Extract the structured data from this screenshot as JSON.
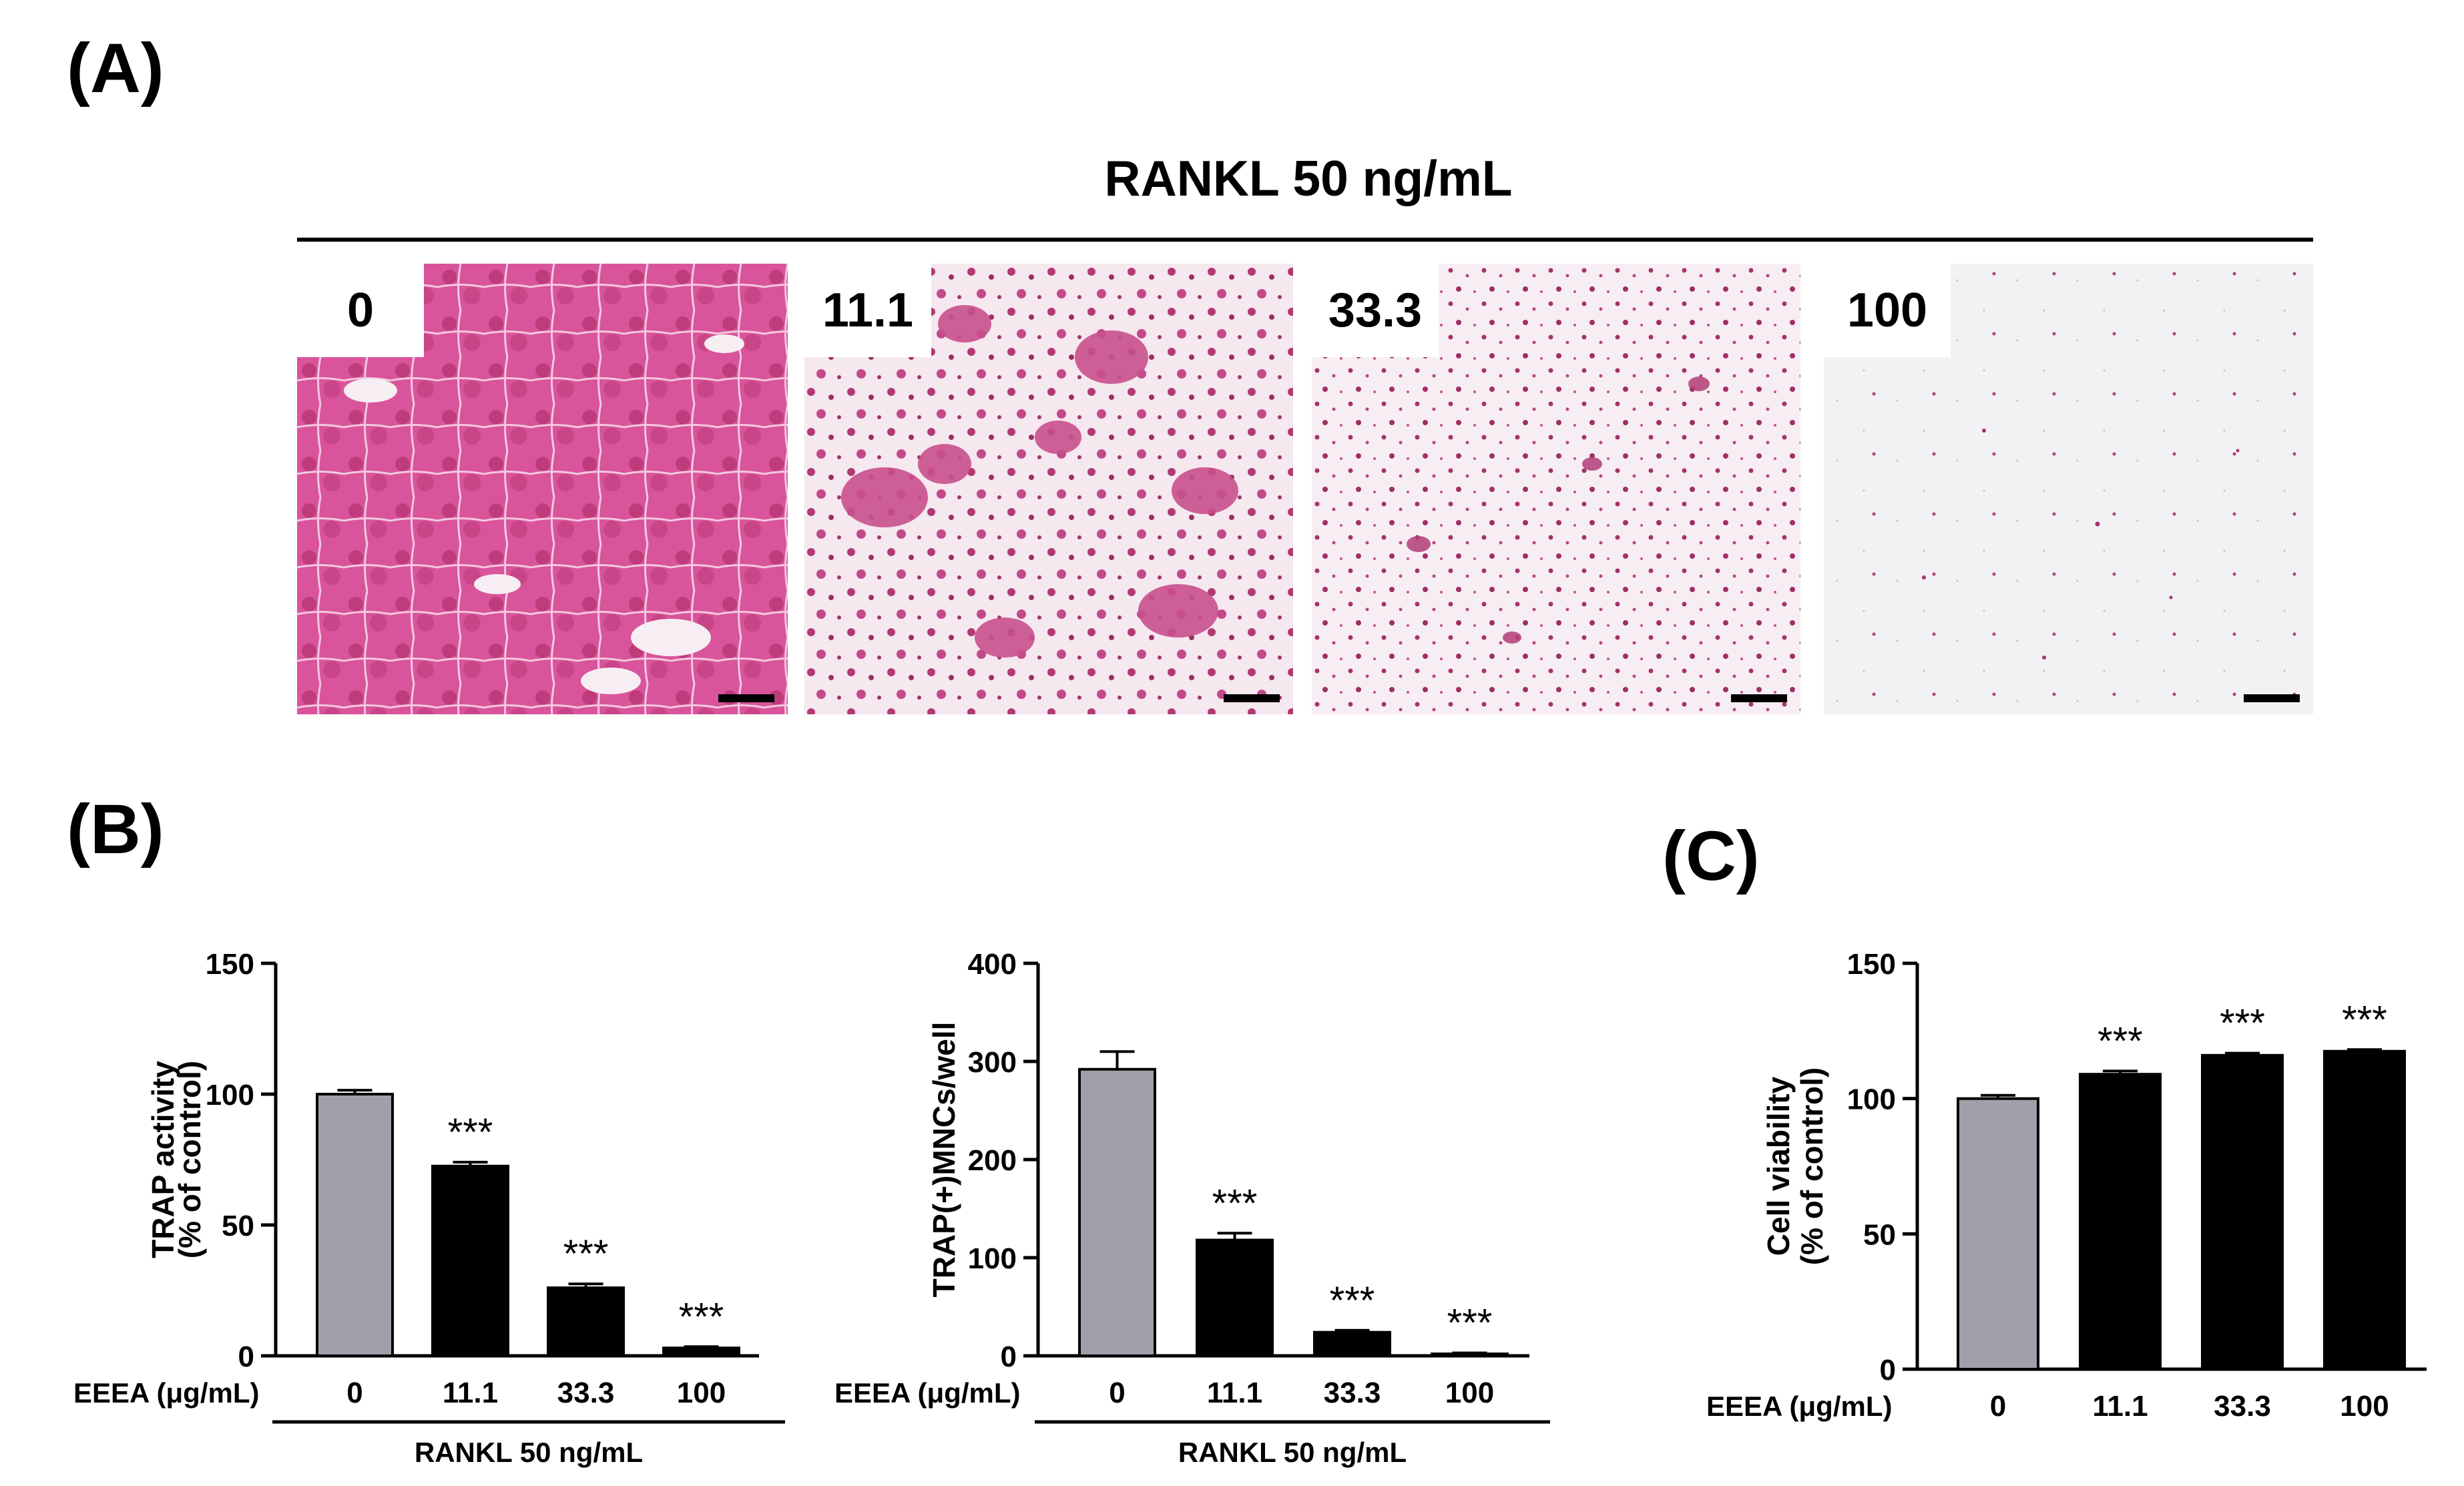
{
  "panels": {
    "a": "(A)",
    "b": "(B)",
    "c": "(C)"
  },
  "micrographs": {
    "title": "RANKL 50 ng/mL",
    "items": [
      {
        "label": "0",
        "stain": "dense multinucleated TRAP-positive cells"
      },
      {
        "label": "11.1",
        "stain": "moderate TRAP-positive cells"
      },
      {
        "label": "33.3",
        "stain": "sparse TRAP-positive cells"
      },
      {
        "label": "100",
        "stain": "very few TRAP-positive cells"
      }
    ]
  },
  "colors": {
    "control_bar": "#a0a0a8",
    "treated_bar": "#000000",
    "stain": "#c0407a"
  },
  "chart_data": [
    {
      "type": "bar",
      "panel": "B",
      "categories": [
        "0",
        "11.1",
        "33.3",
        "100"
      ],
      "values": [
        100,
        72.5,
        26,
        3
      ],
      "errors": [
        1.5,
        1.5,
        1.5,
        0.5
      ],
      "significance": [
        "",
        "***",
        "***",
        "***"
      ],
      "ylabel_lines": [
        "TRAP activity",
        "(% of control)"
      ],
      "ylim": [
        0,
        150
      ],
      "yticks": [
        0,
        50,
        100,
        150
      ],
      "x_prefix": "EEEA (μg/mL)",
      "group_label": "RANKL 50 ng/mL"
    },
    {
      "type": "bar",
      "panel": "B",
      "categories": [
        "0",
        "11.1",
        "33.3",
        "100"
      ],
      "values": [
        292,
        118,
        24,
        2
      ],
      "errors": [
        18,
        7,
        2,
        1
      ],
      "significance": [
        "",
        "***",
        "***",
        "***"
      ],
      "ylabel_lines": [
        "TRAP(+)MNCs/well"
      ],
      "ylim": [
        0,
        400
      ],
      "yticks": [
        0,
        100,
        200,
        300,
        400
      ],
      "x_prefix": "EEEA (μg/mL)",
      "group_label": "RANKL 50 ng/mL"
    },
    {
      "type": "bar",
      "panel": "C",
      "categories": [
        "0",
        "11.1",
        "33.3",
        "100"
      ],
      "values": [
        100,
        109,
        116,
        117.5
      ],
      "errors": [
        1.2,
        1.2,
        0.8,
        0.6
      ],
      "significance": [
        "",
        "***",
        "***",
        "***"
      ],
      "ylabel_lines": [
        "Cell viability",
        "(% of control)"
      ],
      "ylim": [
        0,
        150
      ],
      "yticks": [
        0,
        50,
        100,
        150
      ],
      "x_prefix": "EEEA (μg/mL)",
      "group_label": ""
    }
  ]
}
